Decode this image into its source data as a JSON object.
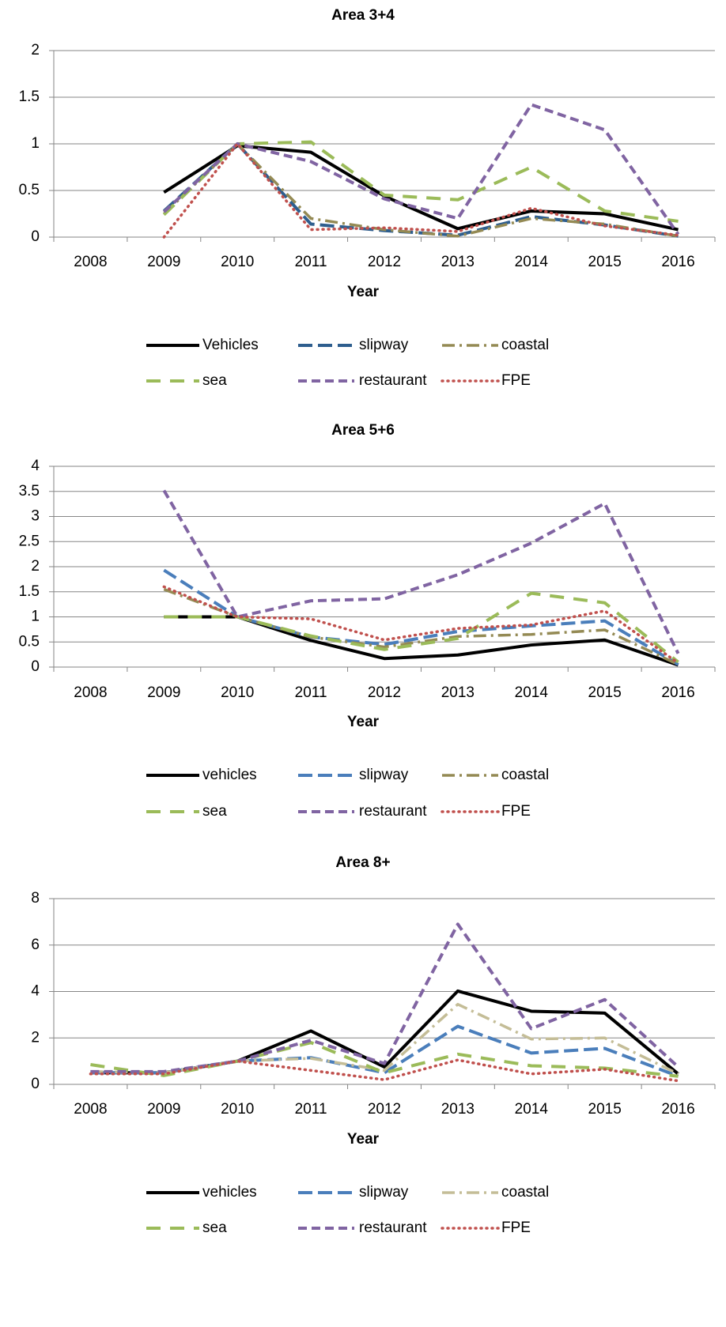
{
  "chart_data": [
    {
      "type": "line",
      "title": "Area 3+4",
      "x_label": "Year",
      "categories": [
        "2008",
        "2009",
        "2010",
        "2011",
        "2012",
        "2013",
        "2014",
        "2015",
        "2016"
      ],
      "ylim": [
        0,
        2
      ],
      "yticks": [
        0,
        0.5,
        1,
        1.5,
        2
      ],
      "grid": true,
      "series": [
        {
          "name": "Vehicles",
          "color": "#000000",
          "values": [
            null,
            0.48,
            0.98,
            0.91,
            0.44,
            0.09,
            0.28,
            0.25,
            0.08
          ]
        },
        {
          "name": "slipway",
          "color": "#2e5e8e",
          "values": [
            null,
            0.28,
            1.0,
            0.14,
            0.07,
            0.02,
            0.22,
            0.13,
            0.01
          ]
        },
        {
          "name": "coastal",
          "color": "#948a54",
          "values": [
            null,
            0.25,
            1.0,
            0.2,
            0.08,
            0.01,
            0.2,
            0.14,
            0.01
          ]
        },
        {
          "name": "sea",
          "color": "#9bbb59",
          "values": [
            null,
            0.24,
            1.0,
            1.02,
            0.45,
            0.4,
            0.75,
            0.28,
            0.17
          ]
        },
        {
          "name": "restaurant",
          "color": "#8064a2",
          "values": [
            null,
            0.27,
            1.0,
            0.81,
            0.41,
            0.2,
            1.42,
            1.15,
            0.03
          ]
        },
        {
          "name": "FPE",
          "color": "#c0504d",
          "values": [
            null,
            0.0,
            1.0,
            0.08,
            0.1,
            0.06,
            0.31,
            0.12,
            0.02
          ]
        }
      ]
    },
    {
      "type": "line",
      "title": "Area 5+6",
      "x_label": "Year",
      "categories": [
        "2008",
        "2009",
        "2010",
        "2011",
        "2012",
        "2013",
        "2014",
        "2015",
        "2016"
      ],
      "ylim": [
        0,
        4
      ],
      "yticks": [
        0,
        0.5,
        1,
        1.5,
        2,
        2.5,
        3,
        3.5,
        4
      ],
      "grid": true,
      "series": [
        {
          "name": "vehicles",
          "color": "#000000",
          "values": [
            null,
            1.0,
            1.0,
            0.53,
            0.17,
            0.24,
            0.44,
            0.54,
            0.04
          ]
        },
        {
          "name": "slipway",
          "color": "#4a7ebb",
          "values": [
            null,
            1.93,
            1.0,
            0.6,
            0.45,
            0.71,
            0.82,
            0.92,
            0.05
          ]
        },
        {
          "name": "coastal",
          "color": "#948a54",
          "values": [
            null,
            1.55,
            1.0,
            0.6,
            0.4,
            0.61,
            0.65,
            0.74,
            0.05
          ]
        },
        {
          "name": "sea",
          "color": "#9bbb59",
          "values": [
            null,
            1.0,
            1.0,
            0.62,
            0.35,
            0.57,
            1.47,
            1.28,
            0.1
          ]
        },
        {
          "name": "restaurant",
          "color": "#8064a2",
          "values": [
            null,
            3.52,
            1.0,
            1.32,
            1.36,
            1.84,
            2.47,
            3.26,
            0.27
          ]
        },
        {
          "name": "FPE",
          "color": "#c0504d",
          "values": [
            null,
            1.6,
            1.0,
            0.96,
            0.54,
            0.77,
            0.84,
            1.12,
            0.08
          ]
        }
      ]
    },
    {
      "type": "line",
      "title": "Area 8+",
      "x_label": "Year",
      "categories": [
        "2008",
        "2009",
        "2010",
        "2011",
        "2012",
        "2013",
        "2014",
        "2015",
        "2016"
      ],
      "ylim": [
        0,
        8
      ],
      "yticks": [
        0,
        2,
        4,
        6,
        8
      ],
      "grid": true,
      "series": [
        {
          "name": "vehicles",
          "color": "#000000",
          "values": [
            0.5,
            0.5,
            1.0,
            2.3,
            0.75,
            4.02,
            3.15,
            3.07,
            0.45
          ]
        },
        {
          "name": "slipway",
          "color": "#4a7ebb",
          "values": [
            0.5,
            0.5,
            1.0,
            1.15,
            0.5,
            2.5,
            1.35,
            1.55,
            0.35
          ]
        },
        {
          "name": "coastal",
          "color": "#c4bd97",
          "values": [
            0.55,
            0.5,
            1.0,
            1.12,
            0.6,
            3.45,
            1.95,
            2.0,
            0.45
          ]
        },
        {
          "name": "sea",
          "color": "#9bbb59",
          "values": [
            0.85,
            0.38,
            1.0,
            1.8,
            0.5,
            1.3,
            0.8,
            0.7,
            0.35
          ]
        },
        {
          "name": "restaurant",
          "color": "#8064a2",
          "values": [
            0.55,
            0.55,
            1.0,
            1.9,
            0.9,
            6.9,
            2.4,
            3.65,
            0.75
          ]
        },
        {
          "name": "FPE",
          "color": "#c0504d",
          "values": [
            0.45,
            0.45,
            1.0,
            0.6,
            0.2,
            1.05,
            0.45,
            0.65,
            0.15
          ]
        }
      ]
    }
  ]
}
